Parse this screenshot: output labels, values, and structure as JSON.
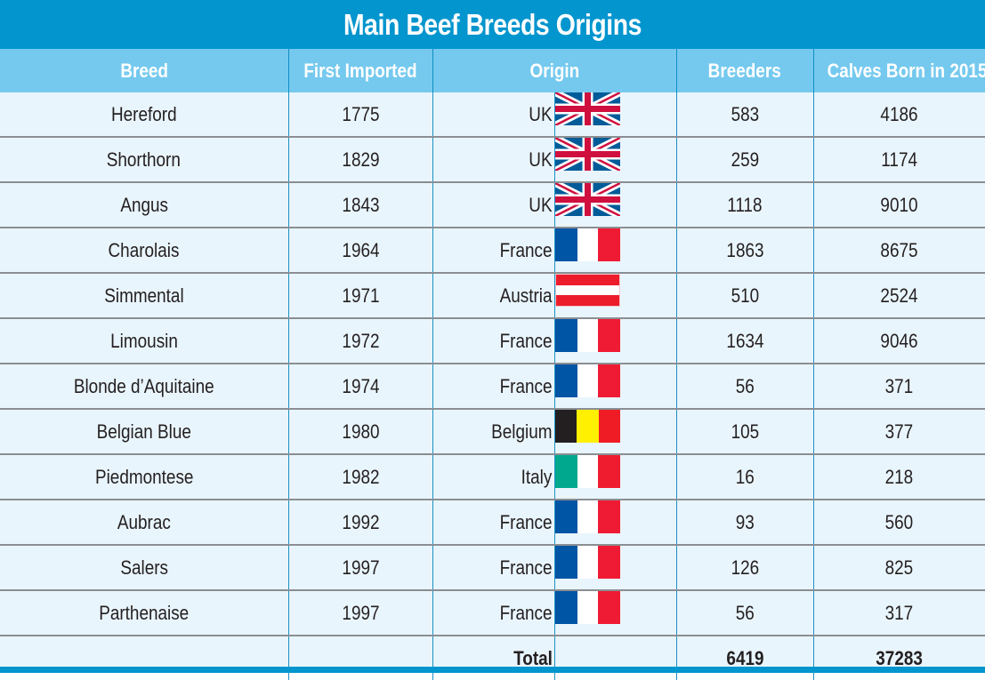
{
  "title": "Main Beef Breeds Origins",
  "columns": {
    "breed": "Breed",
    "first_imported": "First Imported",
    "origin": "Origin",
    "breeders": "Breeders",
    "calves": "Calves Born in 2015"
  },
  "colors": {
    "title_bar": "#0295CE",
    "header_row": "#75C9EE",
    "body_bg": "#E9F5FC",
    "row_divider": "#8A8F93",
    "column_divider": "#1A91C4"
  },
  "flags": {
    "UK": "uk-flag",
    "France": "france-flag",
    "Austria": "austria-flag",
    "Belgium": "belgium-flag",
    "Italy": "italy-flag"
  },
  "rows": [
    {
      "breed": "Hereford",
      "year": "1775",
      "origin": "UK",
      "breeders": "583",
      "calves": "4186"
    },
    {
      "breed": "Shorthorn",
      "year": "1829",
      "origin": "UK",
      "breeders": "259",
      "calves": "1174"
    },
    {
      "breed": "Angus",
      "year": "1843",
      "origin": "UK",
      "breeders": "1118",
      "calves": "9010"
    },
    {
      "breed": "Charolais",
      "year": "1964",
      "origin": "France",
      "breeders": "1863",
      "calves": "8675"
    },
    {
      "breed": "Simmental",
      "year": "1971",
      "origin": "Austria",
      "breeders": "510",
      "calves": "2524"
    },
    {
      "breed": "Limousin",
      "year": "1972",
      "origin": "France",
      "breeders": "1634",
      "calves": "9046"
    },
    {
      "breed": "Blonde d’Aquitaine",
      "year": "1974",
      "origin": "France",
      "breeders": "56",
      "calves": "371"
    },
    {
      "breed": "Belgian Blue",
      "year": "1980",
      "origin": "Belgium",
      "breeders": "105",
      "calves": "377"
    },
    {
      "breed": "Piedmontese",
      "year": "1982",
      "origin": "Italy",
      "breeders": "16",
      "calves": "218"
    },
    {
      "breed": "Aubrac",
      "year": "1992",
      "origin": "France",
      "breeders": "93",
      "calves": "560"
    },
    {
      "breed": "Salers",
      "year": "1997",
      "origin": "France",
      "breeders": "126",
      "calves": "825"
    },
    {
      "breed": "Parthenaise",
      "year": "1997",
      "origin": "France",
      "breeders": "56",
      "calves": "317"
    }
  ],
  "total": {
    "label": "Total",
    "breeders": "6419",
    "calves": "37283"
  }
}
